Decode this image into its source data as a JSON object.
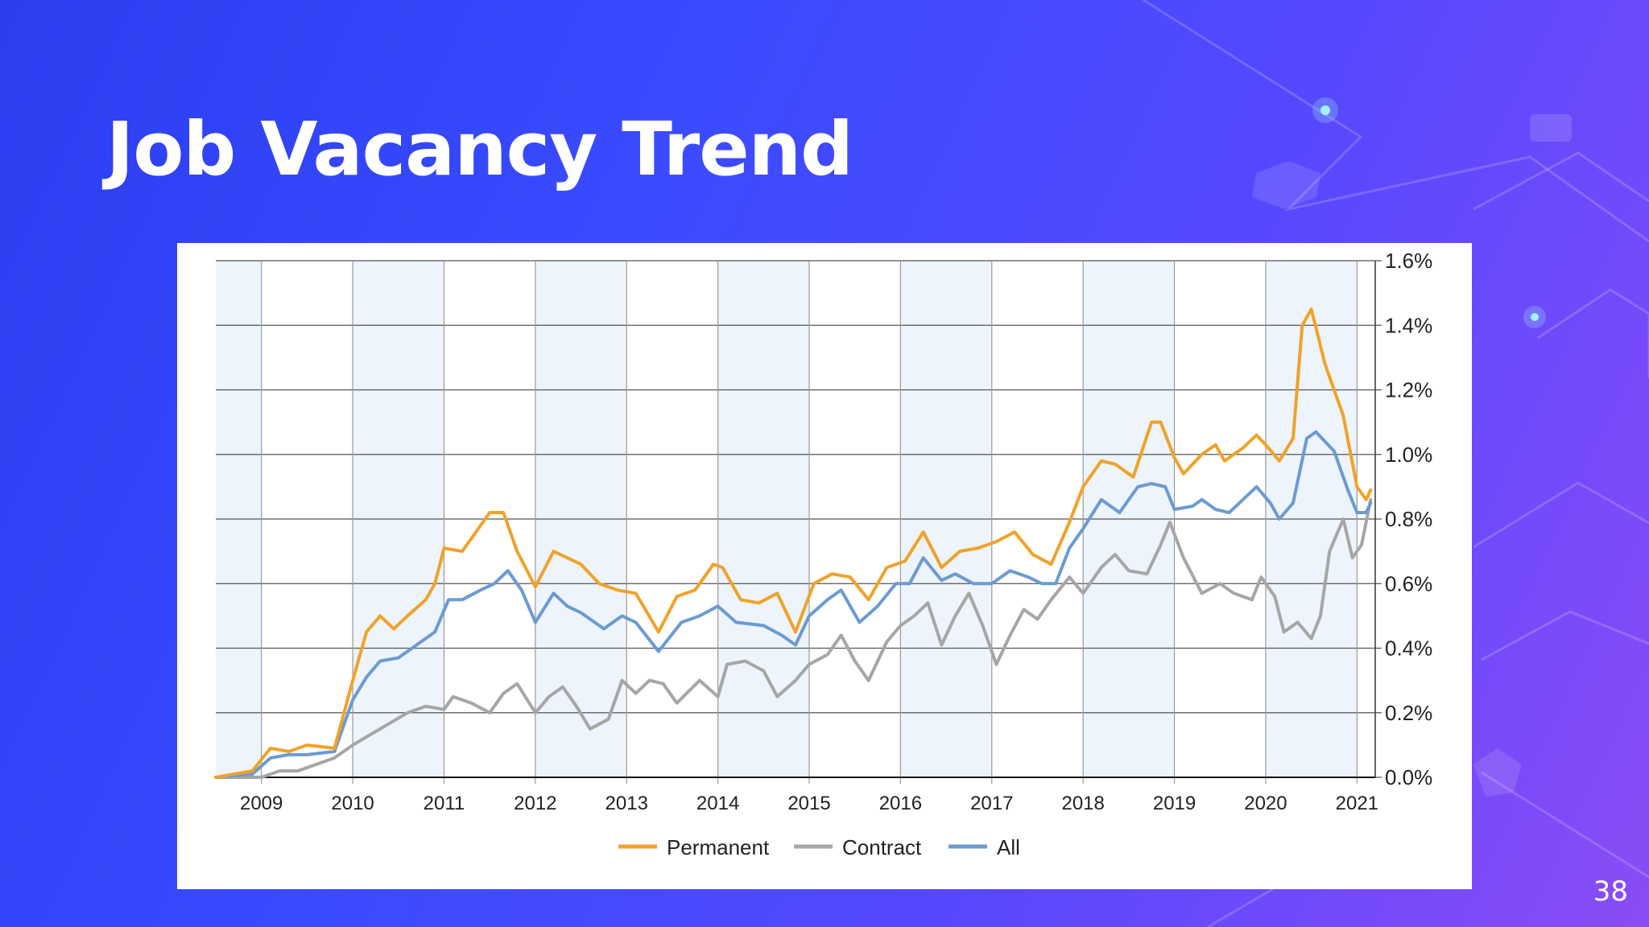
{
  "slide": {
    "title": "Job Vacancy Trend",
    "page_number": "38"
  },
  "colors": {
    "accent": "#f0a22a",
    "contract": "#a6a6a6",
    "all": "#6b9bd1",
    "band": "#eef4fb"
  },
  "chart_data": {
    "type": "line",
    "xlim": [
      2008.5,
      2021.2
    ],
    "ylim": [
      0,
      1.6
    ],
    "yticks": [
      "0.0%",
      "0.2%",
      "0.4%",
      "0.6%",
      "0.8%",
      "1.0%",
      "1.2%",
      "1.4%",
      "1.6%"
    ],
    "xticks": [
      "2009",
      "2010",
      "2011",
      "2012",
      "2013",
      "2014",
      "2015",
      "2016",
      "2017",
      "2018",
      "2019",
      "2020",
      "2021"
    ],
    "legend_position": "bottom",
    "series": [
      {
        "name": "Permanent",
        "color": "#f0a22a",
        "points": [
          [
            2008.5,
            0.0
          ],
          [
            2008.9,
            0.02
          ],
          [
            2009.1,
            0.09
          ],
          [
            2009.3,
            0.08
          ],
          [
            2009.5,
            0.1
          ],
          [
            2009.8,
            0.09
          ],
          [
            2010.0,
            0.3
          ],
          [
            2010.15,
            0.45
          ],
          [
            2010.3,
            0.5
          ],
          [
            2010.45,
            0.46
          ],
          [
            2010.6,
            0.5
          ],
          [
            2010.8,
            0.55
          ],
          [
            2010.9,
            0.6
          ],
          [
            2011.0,
            0.71
          ],
          [
            2011.2,
            0.7
          ],
          [
            2011.35,
            0.76
          ],
          [
            2011.5,
            0.82
          ],
          [
            2011.65,
            0.82
          ],
          [
            2011.8,
            0.7
          ],
          [
            2012.0,
            0.59
          ],
          [
            2012.2,
            0.7
          ],
          [
            2012.35,
            0.68
          ],
          [
            2012.5,
            0.66
          ],
          [
            2012.7,
            0.6
          ],
          [
            2012.9,
            0.58
          ],
          [
            2013.1,
            0.57
          ],
          [
            2013.35,
            0.45
          ],
          [
            2013.55,
            0.56
          ],
          [
            2013.75,
            0.58
          ],
          [
            2013.95,
            0.66
          ],
          [
            2014.05,
            0.65
          ],
          [
            2014.25,
            0.55
          ],
          [
            2014.45,
            0.54
          ],
          [
            2014.65,
            0.57
          ],
          [
            2014.85,
            0.45
          ],
          [
            2015.05,
            0.6
          ],
          [
            2015.25,
            0.63
          ],
          [
            2015.45,
            0.62
          ],
          [
            2015.65,
            0.55
          ],
          [
            2015.85,
            0.65
          ],
          [
            2016.05,
            0.67
          ],
          [
            2016.25,
            0.76
          ],
          [
            2016.45,
            0.65
          ],
          [
            2016.65,
            0.7
          ],
          [
            2016.85,
            0.71
          ],
          [
            2017.05,
            0.73
          ],
          [
            2017.25,
            0.76
          ],
          [
            2017.45,
            0.69
          ],
          [
            2017.65,
            0.66
          ],
          [
            2017.85,
            0.79
          ],
          [
            2018.0,
            0.9
          ],
          [
            2018.2,
            0.98
          ],
          [
            2018.35,
            0.97
          ],
          [
            2018.55,
            0.93
          ],
          [
            2018.75,
            1.1
          ],
          [
            2018.85,
            1.1
          ],
          [
            2019.0,
            0.99
          ],
          [
            2019.1,
            0.94
          ],
          [
            2019.3,
            1.0
          ],
          [
            2019.45,
            1.03
          ],
          [
            2019.55,
            0.98
          ],
          [
            2019.75,
            1.02
          ],
          [
            2019.9,
            1.06
          ],
          [
            2020.0,
            1.03
          ],
          [
            2020.15,
            0.98
          ],
          [
            2020.3,
            1.05
          ],
          [
            2020.4,
            1.4
          ],
          [
            2020.5,
            1.45
          ],
          [
            2020.65,
            1.28
          ],
          [
            2020.85,
            1.12
          ],
          [
            2021.0,
            0.9
          ],
          [
            2021.1,
            0.86
          ],
          [
            2021.15,
            0.89
          ]
        ]
      },
      {
        "name": "Contract",
        "color": "#a6a6a6",
        "points": [
          [
            2008.5,
            0.0
          ],
          [
            2009.0,
            0.0
          ],
          [
            2009.2,
            0.02
          ],
          [
            2009.4,
            0.02
          ],
          [
            2009.6,
            0.04
          ],
          [
            2009.8,
            0.06
          ],
          [
            2010.0,
            0.1
          ],
          [
            2010.3,
            0.15
          ],
          [
            2010.6,
            0.2
          ],
          [
            2010.8,
            0.22
          ],
          [
            2011.0,
            0.21
          ],
          [
            2011.1,
            0.25
          ],
          [
            2011.3,
            0.23
          ],
          [
            2011.5,
            0.2
          ],
          [
            2011.65,
            0.26
          ],
          [
            2011.8,
            0.29
          ],
          [
            2012.0,
            0.2
          ],
          [
            2012.15,
            0.25
          ],
          [
            2012.3,
            0.28
          ],
          [
            2012.45,
            0.22
          ],
          [
            2012.6,
            0.15
          ],
          [
            2012.8,
            0.18
          ],
          [
            2012.95,
            0.3
          ],
          [
            2013.1,
            0.26
          ],
          [
            2013.25,
            0.3
          ],
          [
            2013.4,
            0.29
          ],
          [
            2013.55,
            0.23
          ],
          [
            2013.8,
            0.3
          ],
          [
            2014.0,
            0.25
          ],
          [
            2014.1,
            0.35
          ],
          [
            2014.3,
            0.36
          ],
          [
            2014.5,
            0.33
          ],
          [
            2014.65,
            0.25
          ],
          [
            2014.85,
            0.3
          ],
          [
            2015.0,
            0.35
          ],
          [
            2015.2,
            0.38
          ],
          [
            2015.35,
            0.44
          ],
          [
            2015.5,
            0.36
          ],
          [
            2015.65,
            0.3
          ],
          [
            2015.85,
            0.42
          ],
          [
            2016.0,
            0.47
          ],
          [
            2016.15,
            0.5
          ],
          [
            2016.3,
            0.54
          ],
          [
            2016.45,
            0.41
          ],
          [
            2016.6,
            0.5
          ],
          [
            2016.75,
            0.57
          ],
          [
            2016.9,
            0.47
          ],
          [
            2017.05,
            0.35
          ],
          [
            2017.2,
            0.44
          ],
          [
            2017.35,
            0.52
          ],
          [
            2017.5,
            0.49
          ],
          [
            2017.65,
            0.55
          ],
          [
            2017.85,
            0.62
          ],
          [
            2018.0,
            0.57
          ],
          [
            2018.2,
            0.65
          ],
          [
            2018.35,
            0.69
          ],
          [
            2018.5,
            0.64
          ],
          [
            2018.7,
            0.63
          ],
          [
            2018.85,
            0.72
          ],
          [
            2018.95,
            0.79
          ],
          [
            2019.1,
            0.68
          ],
          [
            2019.3,
            0.57
          ],
          [
            2019.5,
            0.6
          ],
          [
            2019.65,
            0.57
          ],
          [
            2019.85,
            0.55
          ],
          [
            2019.95,
            0.62
          ],
          [
            2020.1,
            0.56
          ],
          [
            2020.2,
            0.45
          ],
          [
            2020.35,
            0.48
          ],
          [
            2020.5,
            0.43
          ],
          [
            2020.6,
            0.5
          ],
          [
            2020.7,
            0.7
          ],
          [
            2020.85,
            0.8
          ],
          [
            2020.95,
            0.68
          ],
          [
            2021.05,
            0.72
          ],
          [
            2021.15,
            0.86
          ]
        ]
      },
      {
        "name": "All",
        "color": "#6b9bd1",
        "points": [
          [
            2008.5,
            0.0
          ],
          [
            2008.9,
            0.01
          ],
          [
            2009.1,
            0.06
          ],
          [
            2009.3,
            0.07
          ],
          [
            2009.5,
            0.07
          ],
          [
            2009.8,
            0.08
          ],
          [
            2010.0,
            0.24
          ],
          [
            2010.15,
            0.31
          ],
          [
            2010.3,
            0.36
          ],
          [
            2010.5,
            0.37
          ],
          [
            2010.7,
            0.41
          ],
          [
            2010.9,
            0.45
          ],
          [
            2011.05,
            0.55
          ],
          [
            2011.2,
            0.55
          ],
          [
            2011.4,
            0.58
          ],
          [
            2011.55,
            0.6
          ],
          [
            2011.7,
            0.64
          ],
          [
            2011.85,
            0.58
          ],
          [
            2012.0,
            0.48
          ],
          [
            2012.2,
            0.57
          ],
          [
            2012.35,
            0.53
          ],
          [
            2012.5,
            0.51
          ],
          [
            2012.75,
            0.46
          ],
          [
            2012.95,
            0.5
          ],
          [
            2013.1,
            0.48
          ],
          [
            2013.35,
            0.39
          ],
          [
            2013.6,
            0.48
          ],
          [
            2013.8,
            0.5
          ],
          [
            2014.0,
            0.53
          ],
          [
            2014.2,
            0.48
          ],
          [
            2014.5,
            0.47
          ],
          [
            2014.7,
            0.44
          ],
          [
            2014.85,
            0.41
          ],
          [
            2015.0,
            0.5
          ],
          [
            2015.2,
            0.55
          ],
          [
            2015.35,
            0.58
          ],
          [
            2015.55,
            0.48
          ],
          [
            2015.75,
            0.53
          ],
          [
            2015.95,
            0.6
          ],
          [
            2016.1,
            0.6
          ],
          [
            2016.25,
            0.68
          ],
          [
            2016.45,
            0.61
          ],
          [
            2016.6,
            0.63
          ],
          [
            2016.8,
            0.6
          ],
          [
            2017.0,
            0.6
          ],
          [
            2017.2,
            0.64
          ],
          [
            2017.4,
            0.62
          ],
          [
            2017.55,
            0.6
          ],
          [
            2017.7,
            0.6
          ],
          [
            2017.85,
            0.71
          ],
          [
            2018.0,
            0.77
          ],
          [
            2018.2,
            0.86
          ],
          [
            2018.4,
            0.82
          ],
          [
            2018.6,
            0.9
          ],
          [
            2018.75,
            0.91
          ],
          [
            2018.9,
            0.9
          ],
          [
            2019.0,
            0.83
          ],
          [
            2019.2,
            0.84
          ],
          [
            2019.3,
            0.86
          ],
          [
            2019.45,
            0.83
          ],
          [
            2019.6,
            0.82
          ],
          [
            2019.75,
            0.86
          ],
          [
            2019.9,
            0.9
          ],
          [
            2020.05,
            0.85
          ],
          [
            2020.15,
            0.8
          ],
          [
            2020.3,
            0.85
          ],
          [
            2020.45,
            1.05
          ],
          [
            2020.55,
            1.07
          ],
          [
            2020.75,
            1.01
          ],
          [
            2020.9,
            0.89
          ],
          [
            2021.0,
            0.82
          ],
          [
            2021.1,
            0.82
          ],
          [
            2021.15,
            0.85
          ]
        ]
      }
    ]
  }
}
